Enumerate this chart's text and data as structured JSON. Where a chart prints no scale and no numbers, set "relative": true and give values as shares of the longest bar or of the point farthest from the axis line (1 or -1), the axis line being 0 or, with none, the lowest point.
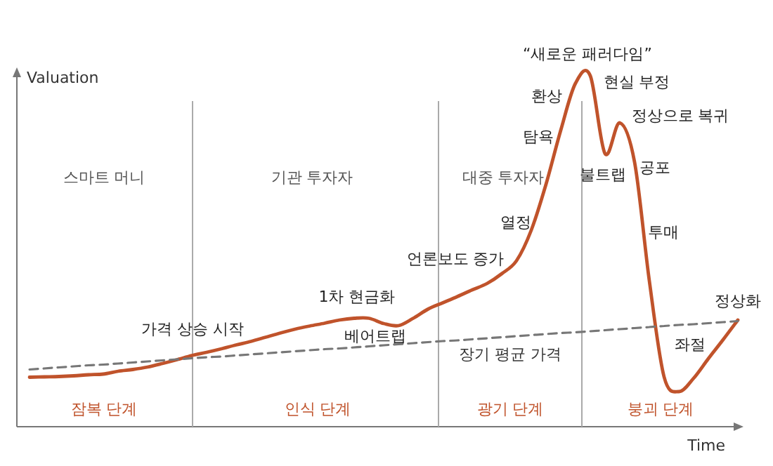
{
  "chart_data": {
    "type": "line",
    "relative": true,
    "xlabel": "Time",
    "ylabel": "Valuation",
    "categories": [
      null,
      null,
      null,
      null,
      null,
      null,
      null,
      null,
      null,
      null,
      null,
      null,
      null,
      null,
      null,
      null,
      null,
      null,
      null,
      null,
      null,
      null,
      null,
      null,
      null,
      null,
      null,
      null,
      null,
      null,
      null,
      null,
      null,
      null,
      null,
      null,
      null,
      null,
      null,
      null,
      null,
      null,
      null,
      null,
      null,
      null,
      null,
      null,
      null
    ],
    "series": [
      {
        "color": "#c0532b",
        "values": [
          0.141,
          0.142,
          0.143,
          0.145,
          0.148,
          0.15,
          0.158,
          0.163,
          0.17,
          0.18,
          0.191,
          0.203,
          0.212,
          0.222,
          0.233,
          0.243,
          0.255,
          0.267,
          0.278,
          0.287,
          0.295,
          0.304,
          0.309,
          0.309,
          0.294,
          0.288,
          0.309,
          0.335,
          0.353,
          0.371,
          0.39,
          0.408,
          0.436,
          0.473,
          0.56,
          0.691,
          0.845,
          0.979,
          1,
          0.778,
          0.866,
          0.754,
          0.416,
          0.142,
          0.1,
          0.138,
          0.194,
          0.248,
          0.304
        ]
      },
      {
        "name": "장기 평균 가격",
        "color": "#777777",
        "line_style": "dashed",
        "values": [
          0.163,
          0.166,
          0.169,
          0.172,
          0.175,
          0.177,
          0.18,
          0.183,
          0.186,
          0.189,
          0.192,
          0.195,
          0.198,
          0.2,
          0.203,
          0.206,
          0.209,
          0.212,
          0.215,
          0.218,
          0.221,
          0.223,
          0.226,
          0.229,
          0.232,
          0.235,
          0.238,
          0.241,
          0.244,
          0.246,
          0.249,
          0.252,
          0.255,
          0.258,
          0.261,
          0.264,
          0.267,
          0.269,
          0.272,
          0.275,
          0.278,
          0.281,
          0.284,
          0.287,
          0.29,
          0.292,
          0.295,
          0.298,
          0.301
        ]
      }
    ],
    "annotations": [
      "“새로운 패러다임”",
      "현실 부정",
      "환상",
      "정상으로 복귀",
      "탐욕",
      "스마트 머니",
      "기관 투자자",
      "대중 투자자",
      "불트랩",
      "공포",
      "열정",
      "투매",
      "언론보도 증가",
      "1차 현금화",
      "정상화",
      "가격 상승 시작",
      "베어트랩",
      "좌절",
      "잠복 단계",
      "인식 단계",
      "광기 단계",
      "붕괴 단계"
    ]
  }
}
